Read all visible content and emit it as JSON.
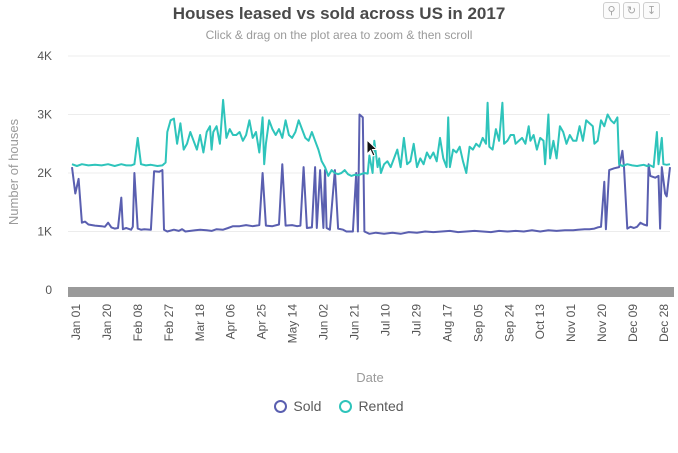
{
  "title": "Houses leased vs sold across US in 2017",
  "subtitle": "Click & drag on the plot area to zoom & then scroll",
  "toolbar": {
    "icons": [
      "zoom-icon",
      "reset-icon",
      "export-icon"
    ]
  },
  "legend": {
    "sold_label": "Sold",
    "rented_label": "Rented"
  },
  "colors": {
    "sold": "#5a5fb0",
    "rented": "#2ec4bb",
    "scrollbar": "#9a9a9a"
  },
  "chart_data": {
    "type": "line",
    "xlabel": "Date",
    "ylabel": "Number of houses",
    "ylim": [
      0,
      4000
    ],
    "y_ticks": [
      "0",
      "1K",
      "2K",
      "3K",
      "4K"
    ],
    "x_ticks": [
      "Jan 01",
      "Jan 20",
      "Feb 08",
      "Feb 27",
      "Mar 18",
      "Apr 06",
      "Apr 25",
      "May 14",
      "Jun 02",
      "Jun 21",
      "Jul 10",
      "Jul 29",
      "Aug 17",
      "Sep 05",
      "Sep 24",
      "Oct 13",
      "Nov 01",
      "Nov 20",
      "Dec 09",
      "Dec 28"
    ],
    "grid": true,
    "legend_position": "bottom",
    "series": [
      {
        "name": "Sold",
        "points": [
          [
            0,
            2100
          ],
          [
            2,
            1650
          ],
          [
            4,
            1900
          ],
          [
            6,
            1150
          ],
          [
            8,
            1170
          ],
          [
            10,
            1120
          ],
          [
            14,
            1100
          ],
          [
            18,
            1090
          ],
          [
            20,
            1080
          ],
          [
            22,
            1150
          ],
          [
            24,
            1070
          ],
          [
            26,
            1050
          ],
          [
            28,
            1060
          ],
          [
            30,
            1580
          ],
          [
            31,
            1040
          ],
          [
            33,
            1060
          ],
          [
            36,
            1030
          ],
          [
            37,
            1080
          ],
          [
            38,
            2000
          ],
          [
            40,
            1050
          ],
          [
            42,
            1030
          ],
          [
            44,
            1040
          ],
          [
            48,
            1030
          ],
          [
            50,
            2030
          ],
          [
            53,
            2020
          ],
          [
            55,
            2050
          ],
          [
            56,
            1030
          ],
          [
            58,
            1000
          ],
          [
            62,
            1030
          ],
          [
            65,
            1010
          ],
          [
            67,
            1040
          ],
          [
            69,
            1000
          ],
          [
            72,
            1010
          ],
          [
            75,
            1020
          ],
          [
            78,
            1030
          ],
          [
            82,
            1020
          ],
          [
            85,
            1010
          ],
          [
            88,
            1040
          ],
          [
            92,
            1030
          ],
          [
            95,
            1060
          ],
          [
            98,
            1090
          ],
          [
            102,
            1090
          ],
          [
            106,
            1110
          ],
          [
            110,
            1090
          ],
          [
            114,
            1110
          ],
          [
            116,
            2000
          ],
          [
            118,
            1100
          ],
          [
            122,
            1090
          ],
          [
            126,
            1120
          ],
          [
            128,
            2150
          ],
          [
            130,
            1100
          ],
          [
            134,
            1110
          ],
          [
            137,
            1090
          ],
          [
            139,
            1100
          ],
          [
            141,
            2100
          ],
          [
            143,
            1060
          ],
          [
            146,
            1070
          ],
          [
            148,
            2100
          ],
          [
            149,
            1060
          ],
          [
            151,
            2050
          ],
          [
            153,
            1060
          ],
          [
            154,
            2050
          ],
          [
            155,
            1060
          ],
          [
            157,
            1030
          ],
          [
            160,
            2050
          ],
          [
            162,
            1050
          ],
          [
            165,
            1030
          ],
          [
            167,
            1000
          ],
          [
            169,
            1000
          ],
          [
            171,
            1000
          ],
          [
            173,
            2000
          ],
          [
            174,
            1000
          ],
          [
            175,
            3000
          ],
          [
            177,
            2950
          ],
          [
            178,
            1000
          ],
          [
            181,
            960
          ],
          [
            185,
            980
          ],
          [
            190,
            960
          ],
          [
            195,
            980
          ],
          [
            200,
            960
          ],
          [
            205,
            990
          ],
          [
            210,
            980
          ],
          [
            215,
            1000
          ],
          [
            220,
            990
          ],
          [
            225,
            1000
          ],
          [
            230,
            1010
          ],
          [
            235,
            990
          ],
          [
            240,
            1000
          ],
          [
            245,
            1010
          ],
          [
            250,
            1000
          ],
          [
            255,
            990
          ],
          [
            260,
            1010
          ],
          [
            265,
            1000
          ],
          [
            270,
            1010
          ],
          [
            275,
            1000
          ],
          [
            280,
            1020
          ],
          [
            285,
            1000
          ],
          [
            290,
            1020
          ],
          [
            295,
            1010
          ],
          [
            300,
            1020
          ],
          [
            305,
            1020
          ],
          [
            308,
            1030
          ],
          [
            312,
            1040
          ],
          [
            315,
            1040
          ],
          [
            318,
            1050
          ],
          [
            320,
            1070
          ],
          [
            322,
            1080
          ],
          [
            324,
            1850
          ],
          [
            325,
            1040
          ],
          [
            327,
            2050
          ],
          [
            330,
            2080
          ],
          [
            333,
            2100
          ],
          [
            335,
            2380
          ],
          [
            336,
            2100
          ],
          [
            338,
            1050
          ],
          [
            340,
            1080
          ],
          [
            342,
            1060
          ],
          [
            344,
            1080
          ],
          [
            346,
            1150
          ],
          [
            348,
            1120
          ],
          [
            350,
            1100
          ],
          [
            351,
            2150
          ],
          [
            352,
            1950
          ],
          [
            355,
            1920
          ],
          [
            357,
            1950
          ],
          [
            358,
            1050
          ],
          [
            359,
            2100
          ],
          [
            361,
            1650
          ],
          [
            362,
            1600
          ],
          [
            364,
            2100
          ]
        ]
      },
      {
        "name": "Rented",
        "points": [
          [
            0,
            2150
          ],
          [
            3,
            2120
          ],
          [
            6,
            2150
          ],
          [
            10,
            2130
          ],
          [
            14,
            2140
          ],
          [
            18,
            2130
          ],
          [
            22,
            2150
          ],
          [
            26,
            2120
          ],
          [
            30,
            2150
          ],
          [
            33,
            2130
          ],
          [
            36,
            2130
          ],
          [
            38,
            2150
          ],
          [
            40,
            2600
          ],
          [
            42,
            2150
          ],
          [
            45,
            2130
          ],
          [
            48,
            2140
          ],
          [
            52,
            2120
          ],
          [
            55,
            2130
          ],
          [
            57,
            2180
          ],
          [
            58,
            2700
          ],
          [
            60,
            2900
          ],
          [
            62,
            2930
          ],
          [
            64,
            2500
          ],
          [
            66,
            2850
          ],
          [
            68,
            2400
          ],
          [
            70,
            2500
          ],
          [
            72,
            2700
          ],
          [
            74,
            2550
          ],
          [
            76,
            2400
          ],
          [
            78,
            2650
          ],
          [
            80,
            2350
          ],
          [
            82,
            2700
          ],
          [
            84,
            2800
          ],
          [
            85,
            2400
          ],
          [
            86,
            2700
          ],
          [
            88,
            2800
          ],
          [
            90,
            2500
          ],
          [
            92,
            3250
          ],
          [
            94,
            2600
          ],
          [
            96,
            2750
          ],
          [
            98,
            2650
          ],
          [
            100,
            2650
          ],
          [
            102,
            2700
          ],
          [
            104,
            2550
          ],
          [
            106,
            2650
          ],
          [
            108,
            2900
          ],
          [
            110,
            2600
          ],
          [
            112,
            2700
          ],
          [
            114,
            2350
          ],
          [
            116,
            2950
          ],
          [
            117,
            2150
          ],
          [
            118,
            2500
          ],
          [
            120,
            2900
          ],
          [
            122,
            2750
          ],
          [
            124,
            2650
          ],
          [
            126,
            2750
          ],
          [
            128,
            2600
          ],
          [
            130,
            2900
          ],
          [
            132,
            2650
          ],
          [
            134,
            2600
          ],
          [
            136,
            2700
          ],
          [
            138,
            2900
          ],
          [
            140,
            2750
          ],
          [
            142,
            2600
          ],
          [
            144,
            2550
          ],
          [
            146,
            2700
          ],
          [
            148,
            2550
          ],
          [
            150,
            2400
          ],
          [
            152,
            2200
          ],
          [
            154,
            2100
          ],
          [
            156,
            1950
          ],
          [
            158,
            2050
          ],
          [
            160,
            2000
          ],
          [
            162,
            1980
          ],
          [
            164,
            2000
          ],
          [
            166,
            2050
          ],
          [
            168,
            1980
          ],
          [
            170,
            1950
          ],
          [
            172,
            1970
          ],
          [
            174,
            1960
          ],
          [
            176,
            1980
          ],
          [
            178,
            2000
          ],
          [
            180,
            1990
          ],
          [
            181,
            2300
          ],
          [
            183,
            2000
          ],
          [
            184,
            2550
          ],
          [
            186,
            2100
          ],
          [
            187,
            2250
          ],
          [
            188,
            2000
          ],
          [
            190,
            2150
          ],
          [
            192,
            2200
          ],
          [
            194,
            2100
          ],
          [
            196,
            2250
          ],
          [
            198,
            2400
          ],
          [
            200,
            2100
          ],
          [
            202,
            2600
          ],
          [
            204,
            2150
          ],
          [
            206,
            2200
          ],
          [
            208,
            2500
          ],
          [
            210,
            2100
          ],
          [
            212,
            2250
          ],
          [
            214,
            2150
          ],
          [
            216,
            2350
          ],
          [
            218,
            2250
          ],
          [
            220,
            2350
          ],
          [
            222,
            2200
          ],
          [
            224,
            2600
          ],
          [
            226,
            2250
          ],
          [
            228,
            2100
          ],
          [
            229,
            2950
          ],
          [
            230,
            2100
          ],
          [
            232,
            2400
          ],
          [
            234,
            2350
          ],
          [
            236,
            2450
          ],
          [
            238,
            2200
          ],
          [
            240,
            2000
          ],
          [
            242,
            2450
          ],
          [
            244,
            2400
          ],
          [
            246,
            2500
          ],
          [
            248,
            2450
          ],
          [
            250,
            2600
          ],
          [
            252,
            2500
          ],
          [
            253,
            3200
          ],
          [
            254,
            2450
          ],
          [
            256,
            2400
          ],
          [
            258,
            2750
          ],
          [
            260,
            2550
          ],
          [
            262,
            3200
          ],
          [
            263,
            2500
          ],
          [
            265,
            2550
          ],
          [
            267,
            2650
          ],
          [
            269,
            2650
          ],
          [
            270,
            2500
          ],
          [
            272,
            2550
          ],
          [
            274,
            2600
          ],
          [
            276,
            2500
          ],
          [
            278,
            2800
          ],
          [
            279,
            2550
          ],
          [
            281,
            2650
          ],
          [
            283,
            2400
          ],
          [
            285,
            2600
          ],
          [
            287,
            2550
          ],
          [
            288,
            2150
          ],
          [
            290,
            3000
          ],
          [
            291,
            2250
          ],
          [
            293,
            2550
          ],
          [
            295,
            2250
          ],
          [
            297,
            2800
          ],
          [
            299,
            2700
          ],
          [
            301,
            2500
          ],
          [
            303,
            2650
          ],
          [
            305,
            2550
          ],
          [
            307,
            2550
          ],
          [
            309,
            2800
          ],
          [
            311,
            2550
          ],
          [
            313,
            2900
          ],
          [
            315,
            2850
          ],
          [
            317,
            2800
          ],
          [
            318,
            2500
          ],
          [
            320,
            2550
          ],
          [
            322,
            2900
          ],
          [
            324,
            2800
          ],
          [
            326,
            3000
          ],
          [
            328,
            2900
          ],
          [
            330,
            2850
          ],
          [
            332,
            2950
          ],
          [
            333,
            2150
          ],
          [
            335,
            2120
          ],
          [
            338,
            2150
          ],
          [
            341,
            2130
          ],
          [
            344,
            2120
          ],
          [
            346,
            2130
          ],
          [
            348,
            2140
          ],
          [
            350,
            2120
          ],
          [
            352,
            2130
          ],
          [
            354,
            2100
          ],
          [
            356,
            2700
          ],
          [
            357,
            2150
          ],
          [
            359,
            2600
          ],
          [
            360,
            2150
          ],
          [
            362,
            2140
          ],
          [
            364,
            2150
          ]
        ]
      }
    ]
  }
}
